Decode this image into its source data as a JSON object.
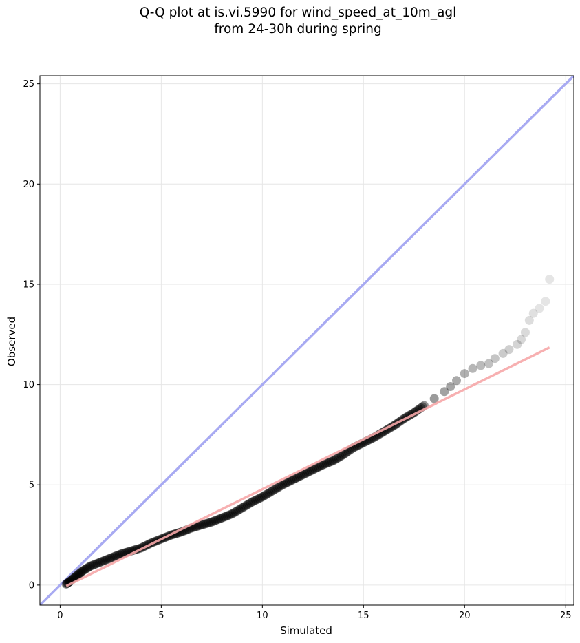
{
  "chart_data": {
    "type": "scatter",
    "title_lines": [
      "Q-Q plot at is.vi.5990 for wind_speed_at_10m_agl",
      "from 24-30h during spring"
    ],
    "xlabel": "Simulated",
    "ylabel": "Observed",
    "xlim": [
      -1,
      25.4
    ],
    "ylim": [
      -1,
      25.4
    ],
    "xticks": [
      0,
      5,
      10,
      15,
      20,
      25
    ],
    "yticks": [
      0,
      5,
      10,
      15,
      20,
      25
    ],
    "grid": true,
    "colors": {
      "points": "#000000",
      "identity_line": "#a8aaf2",
      "fit_line": "#f6a7a9",
      "grid": "#e6e6e6"
    },
    "identity_line": {
      "x": [
        -1,
        25.4
      ],
      "y": [
        -1,
        25.4
      ]
    },
    "fit_line": {
      "x": [
        0.3,
        24.2
      ],
      "y": [
        -0.05,
        11.85
      ]
    },
    "points": {
      "x": [
        0.3,
        0.5,
        0.8,
        1.1,
        1.5,
        2.0,
        2.5,
        3.0,
        3.5,
        4.0,
        4.5,
        5.0,
        5.5,
        6.0,
        6.5,
        7.0,
        7.5,
        8.0,
        8.5,
        9.0,
        9.5,
        10.0,
        10.5,
        11.0,
        11.5,
        12.0,
        12.5,
        13.0,
        13.5,
        14.0,
        14.5,
        15.0,
        15.5,
        16.0,
        16.5,
        17.0,
        17.5,
        18.0,
        18.5,
        19.0,
        19.3,
        19.6,
        20.0,
        20.4,
        20.8,
        21.2,
        21.5,
        21.9,
        22.2,
        22.6,
        22.8,
        23.0,
        23.2,
        23.4,
        23.7,
        24.0,
        24.2
      ],
      "y": [
        0.05,
        0.2,
        0.45,
        0.7,
        0.95,
        1.15,
        1.35,
        1.55,
        1.7,
        1.85,
        2.1,
        2.3,
        2.5,
        2.65,
        2.85,
        3.0,
        3.15,
        3.35,
        3.55,
        3.85,
        4.15,
        4.4,
        4.7,
        5.0,
        5.25,
        5.5,
        5.75,
        6.0,
        6.2,
        6.5,
        6.85,
        7.1,
        7.35,
        7.65,
        7.95,
        8.3,
        8.6,
        8.95,
        9.3,
        9.65,
        9.9,
        10.2,
        10.55,
        10.8,
        10.95,
        11.05,
        11.3,
        11.55,
        11.75,
        12.0,
        12.25,
        12.6,
        13.2,
        13.55,
        13.8,
        14.15,
        15.25
      ]
    }
  }
}
